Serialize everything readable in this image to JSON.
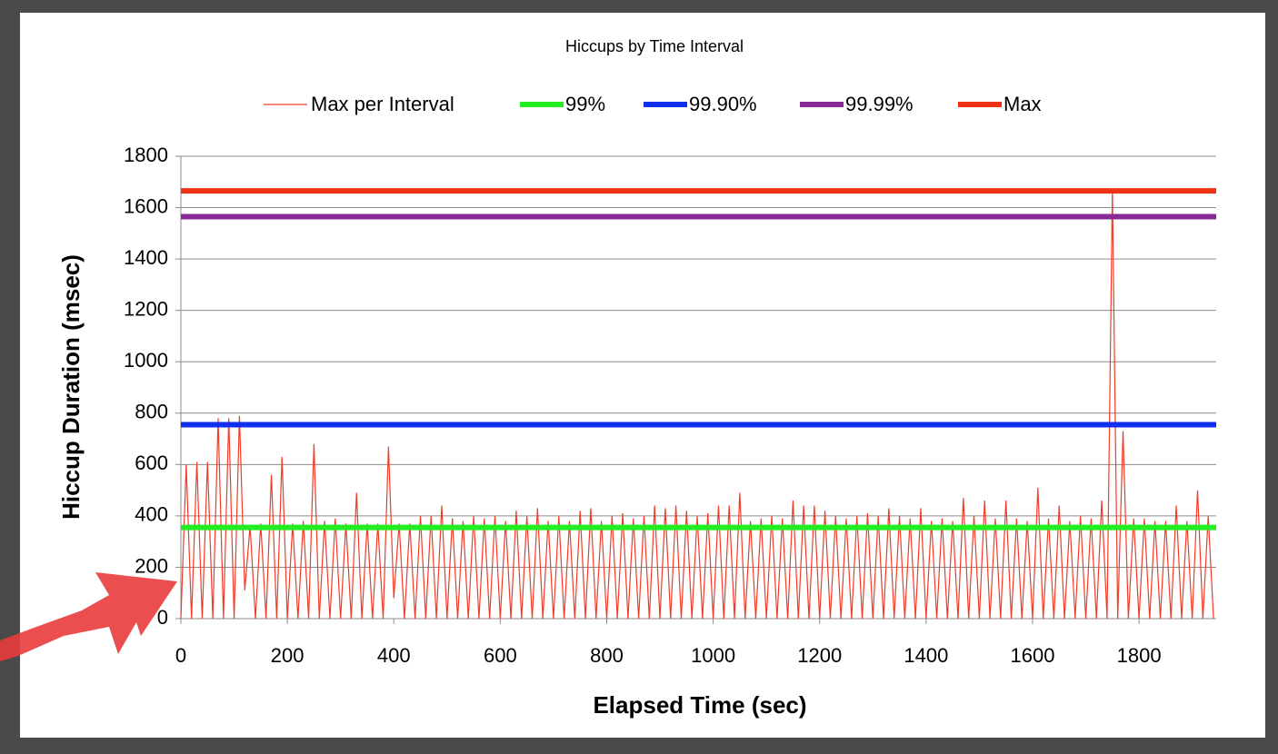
{
  "chart_data": {
    "type": "line",
    "title": "Hiccups by Time Interval",
    "x_label": "Elapsed Time (sec)",
    "y_label": "Hiccup Duration (msec)",
    "xlim": [
      0,
      1945
    ],
    "xticks": [
      0,
      200,
      400,
      600,
      800,
      1000,
      1200,
      1400,
      1600,
      1800
    ],
    "ylim": [
      0,
      1800
    ],
    "yticks": [
      0,
      200,
      400,
      600,
      800,
      1000,
      1200,
      1400,
      1600,
      1800
    ],
    "grid": true,
    "x": [
      0,
      10,
      20,
      30,
      40,
      50,
      60,
      70,
      80,
      90,
      100,
      110,
      120,
      130,
      140,
      150,
      160,
      170,
      180,
      190,
      200,
      210,
      220,
      230,
      240,
      250,
      260,
      270,
      280,
      290,
      300,
      310,
      320,
      330,
      340,
      350,
      360,
      370,
      380,
      390,
      400,
      410,
      420,
      430,
      440,
      450,
      460,
      470,
      480,
      490,
      500,
      510,
      520,
      530,
      540,
      550,
      560,
      570,
      580,
      590,
      600,
      610,
      620,
      630,
      640,
      650,
      660,
      670,
      680,
      690,
      700,
      710,
      720,
      730,
      740,
      750,
      760,
      770,
      780,
      790,
      800,
      810,
      820,
      830,
      840,
      850,
      860,
      870,
      880,
      890,
      900,
      910,
      920,
      930,
      940,
      950,
      960,
      970,
      980,
      990,
      1000,
      1010,
      1020,
      1030,
      1040,
      1050,
      1060,
      1070,
      1080,
      1090,
      1100,
      1110,
      1120,
      1130,
      1140,
      1150,
      1160,
      1170,
      1180,
      1190,
      1200,
      1210,
      1220,
      1230,
      1240,
      1250,
      1260,
      1270,
      1280,
      1290,
      1300,
      1310,
      1320,
      1330,
      1340,
      1350,
      1360,
      1370,
      1380,
      1390,
      1400,
      1410,
      1420,
      1430,
      1440,
      1450,
      1460,
      1470,
      1480,
      1490,
      1500,
      1510,
      1520,
      1530,
      1540,
      1550,
      1560,
      1570,
      1580,
      1590,
      1600,
      1610,
      1620,
      1630,
      1640,
      1650,
      1660,
      1670,
      1680,
      1690,
      1700,
      1710,
      1720,
      1730,
      1740,
      1750,
      1760,
      1770,
      1780,
      1790,
      1800,
      1810,
      1820,
      1830,
      1840,
      1850,
      1860,
      1870,
      1880,
      1890,
      1900,
      1910,
      1920,
      1930,
      1940
    ],
    "series": [
      {
        "name": "Max per Interval",
        "color": "#f03c28",
        "values": [
          0,
          600,
          0,
          610,
          0,
          610,
          0,
          780,
          0,
          780,
          0,
          790,
          110,
          360,
          0,
          370,
          0,
          560,
          0,
          630,
          0,
          370,
          0,
          380,
          0,
          680,
          0,
          380,
          0,
          390,
          0,
          370,
          0,
          490,
          0,
          370,
          0,
          370,
          0,
          670,
          80,
          370,
          0,
          370,
          0,
          400,
          0,
          400,
          0,
          440,
          0,
          390,
          0,
          380,
          0,
          400,
          0,
          390,
          0,
          400,
          0,
          380,
          0,
          420,
          0,
          400,
          0,
          430,
          0,
          380,
          0,
          400,
          0,
          380,
          0,
          420,
          0,
          430,
          0,
          380,
          0,
          400,
          0,
          410,
          0,
          390,
          0,
          400,
          0,
          440,
          0,
          430,
          0,
          440,
          0,
          420,
          0,
          400,
          0,
          410,
          0,
          440,
          0,
          440,
          0,
          490,
          0,
          380,
          0,
          390,
          0,
          400,
          0,
          390,
          0,
          460,
          0,
          440,
          0,
          440,
          0,
          420,
          0,
          400,
          0,
          390,
          0,
          400,
          0,
          410,
          0,
          400,
          0,
          430,
          0,
          400,
          0,
          390,
          0,
          430,
          0,
          380,
          0,
          390,
          0,
          380,
          0,
          470,
          0,
          400,
          0,
          460,
          0,
          390,
          0,
          460,
          0,
          390,
          0,
          380,
          0,
          510,
          0,
          390,
          0,
          440,
          0,
          380,
          0,
          400,
          0,
          390,
          0,
          460,
          0,
          1670,
          0,
          730,
          0,
          390,
          0,
          390,
          0,
          380,
          0,
          380,
          0,
          440,
          0,
          380,
          0,
          500,
          0,
          400,
          0
        ]
      }
    ],
    "reference_lines": [
      {
        "name": "99%",
        "color": "#22ee22",
        "value": 355
      },
      {
        "name": "99.90%",
        "color": "#1030ee",
        "value": 755
      },
      {
        "name": "99.99%",
        "color": "#8a2a96",
        "value": 1565
      },
      {
        "name": "Max",
        "color": "#f03214",
        "value": 1665
      }
    ]
  }
}
